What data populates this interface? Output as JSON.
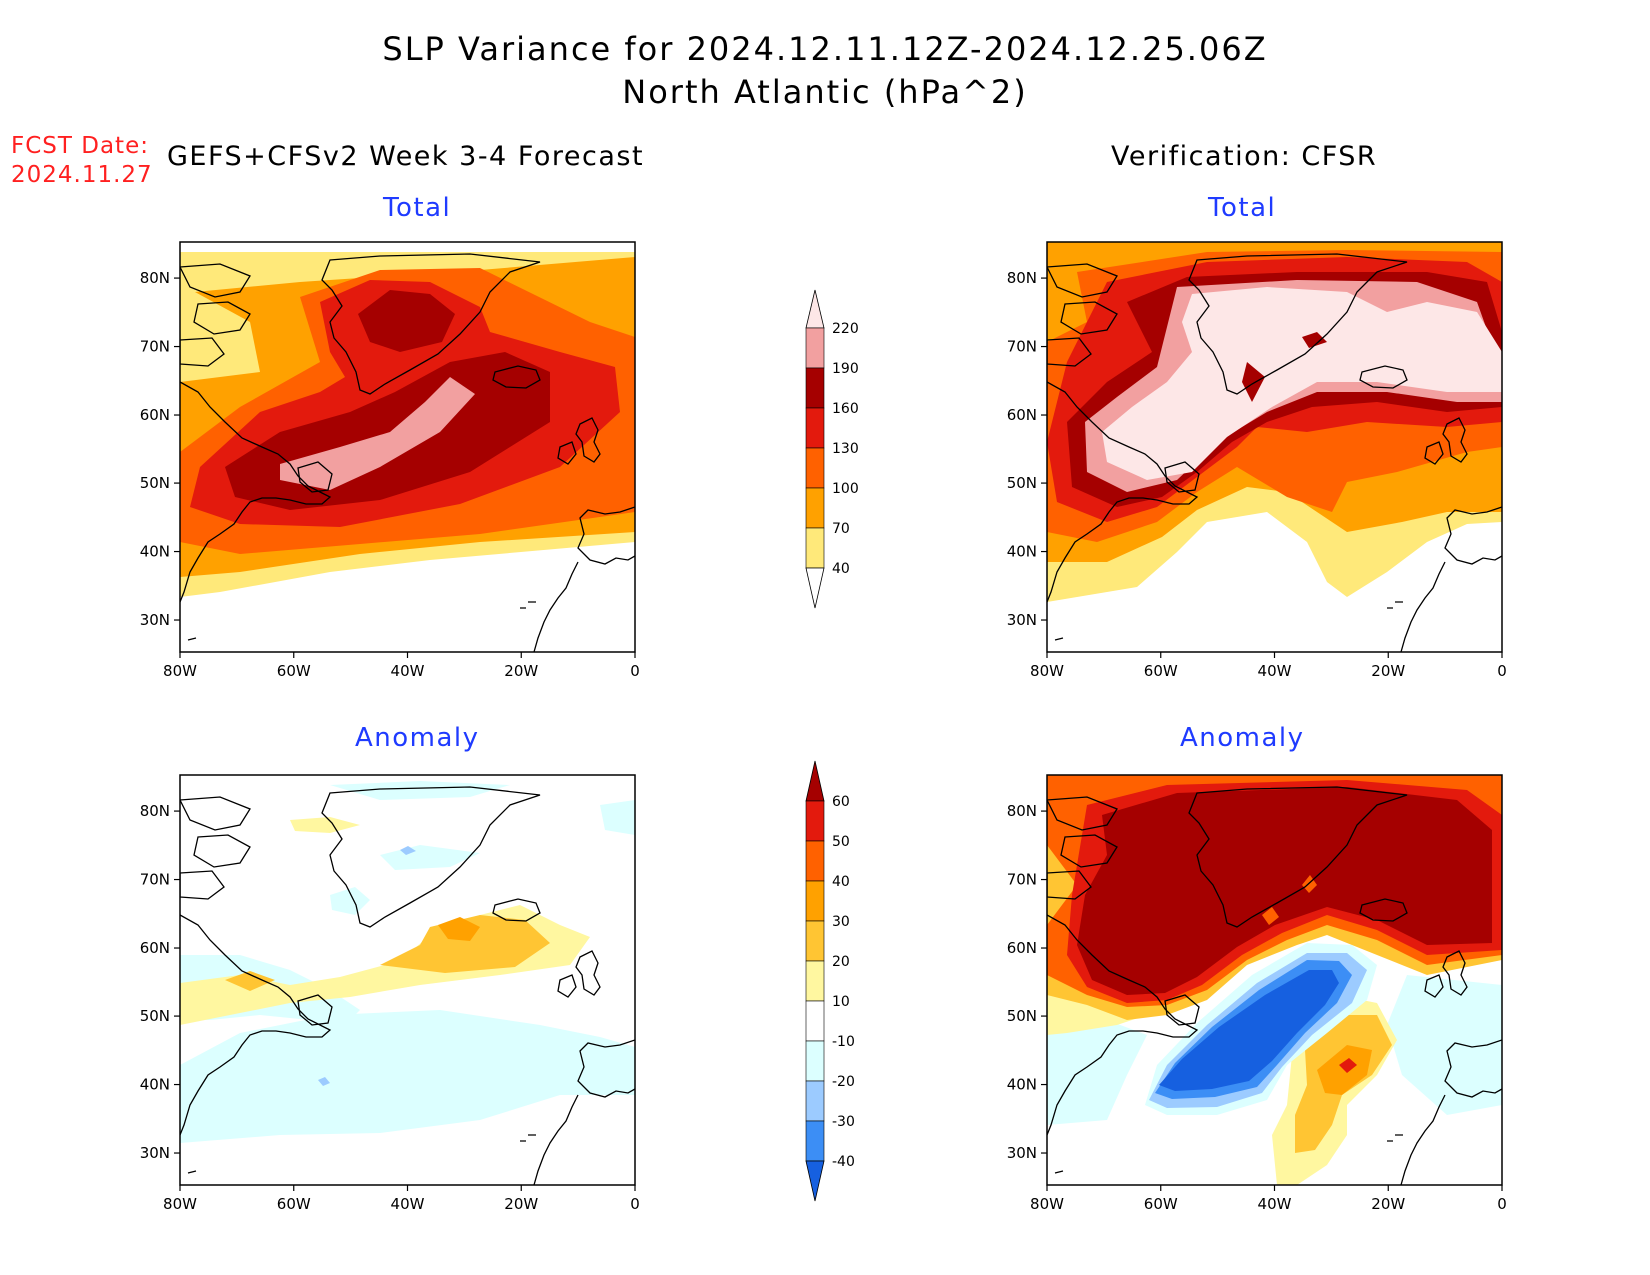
{
  "header": {
    "title_line1": "SLP Variance for 2024.12.11.12Z-2024.12.25.06Z",
    "title_line2": "North Atlantic (hPa^2)",
    "fcst_label": "FCST Date:",
    "fcst_date": "2024.11.27",
    "left_heading": "GEFS+CFSv2 Week 3-4 Forecast",
    "right_heading": "Verification: CFSR"
  },
  "panels": {
    "fc_total": {
      "title": "Total"
    },
    "vf_total": {
      "title": "Total"
    },
    "fc_anom": {
      "title": "Anomaly"
    },
    "vf_anom": {
      "title": "Anomaly"
    }
  },
  "axes": {
    "lon_labels": [
      "80W",
      "60W",
      "40W",
      "20W",
      "0"
    ],
    "lat_labels": [
      "80N",
      "70N",
      "60N",
      "50N",
      "40N",
      "30N"
    ]
  },
  "colorbars": {
    "total": {
      "levels": [
        "40",
        "70",
        "100",
        "130",
        "160",
        "190",
        "220"
      ],
      "colors": [
        "#ffe97a",
        "#ffa100",
        "#ff6100",
        "#e31a0d",
        "#a50000",
        "#f2a0a0",
        "#fde7e7"
      ]
    },
    "anomaly": {
      "levels": [
        "-40",
        "-30",
        "-20",
        "-10",
        "10",
        "20",
        "30",
        "40",
        "50",
        "60"
      ],
      "colors": [
        "#1660e0",
        "#3c8ef5",
        "#9ccbff",
        "#dcffff",
        "#ffffff",
        "#fff7a0",
        "#ffc533",
        "#ffa100",
        "#ff6100",
        "#e31a0d",
        "#a50000"
      ]
    }
  }
}
